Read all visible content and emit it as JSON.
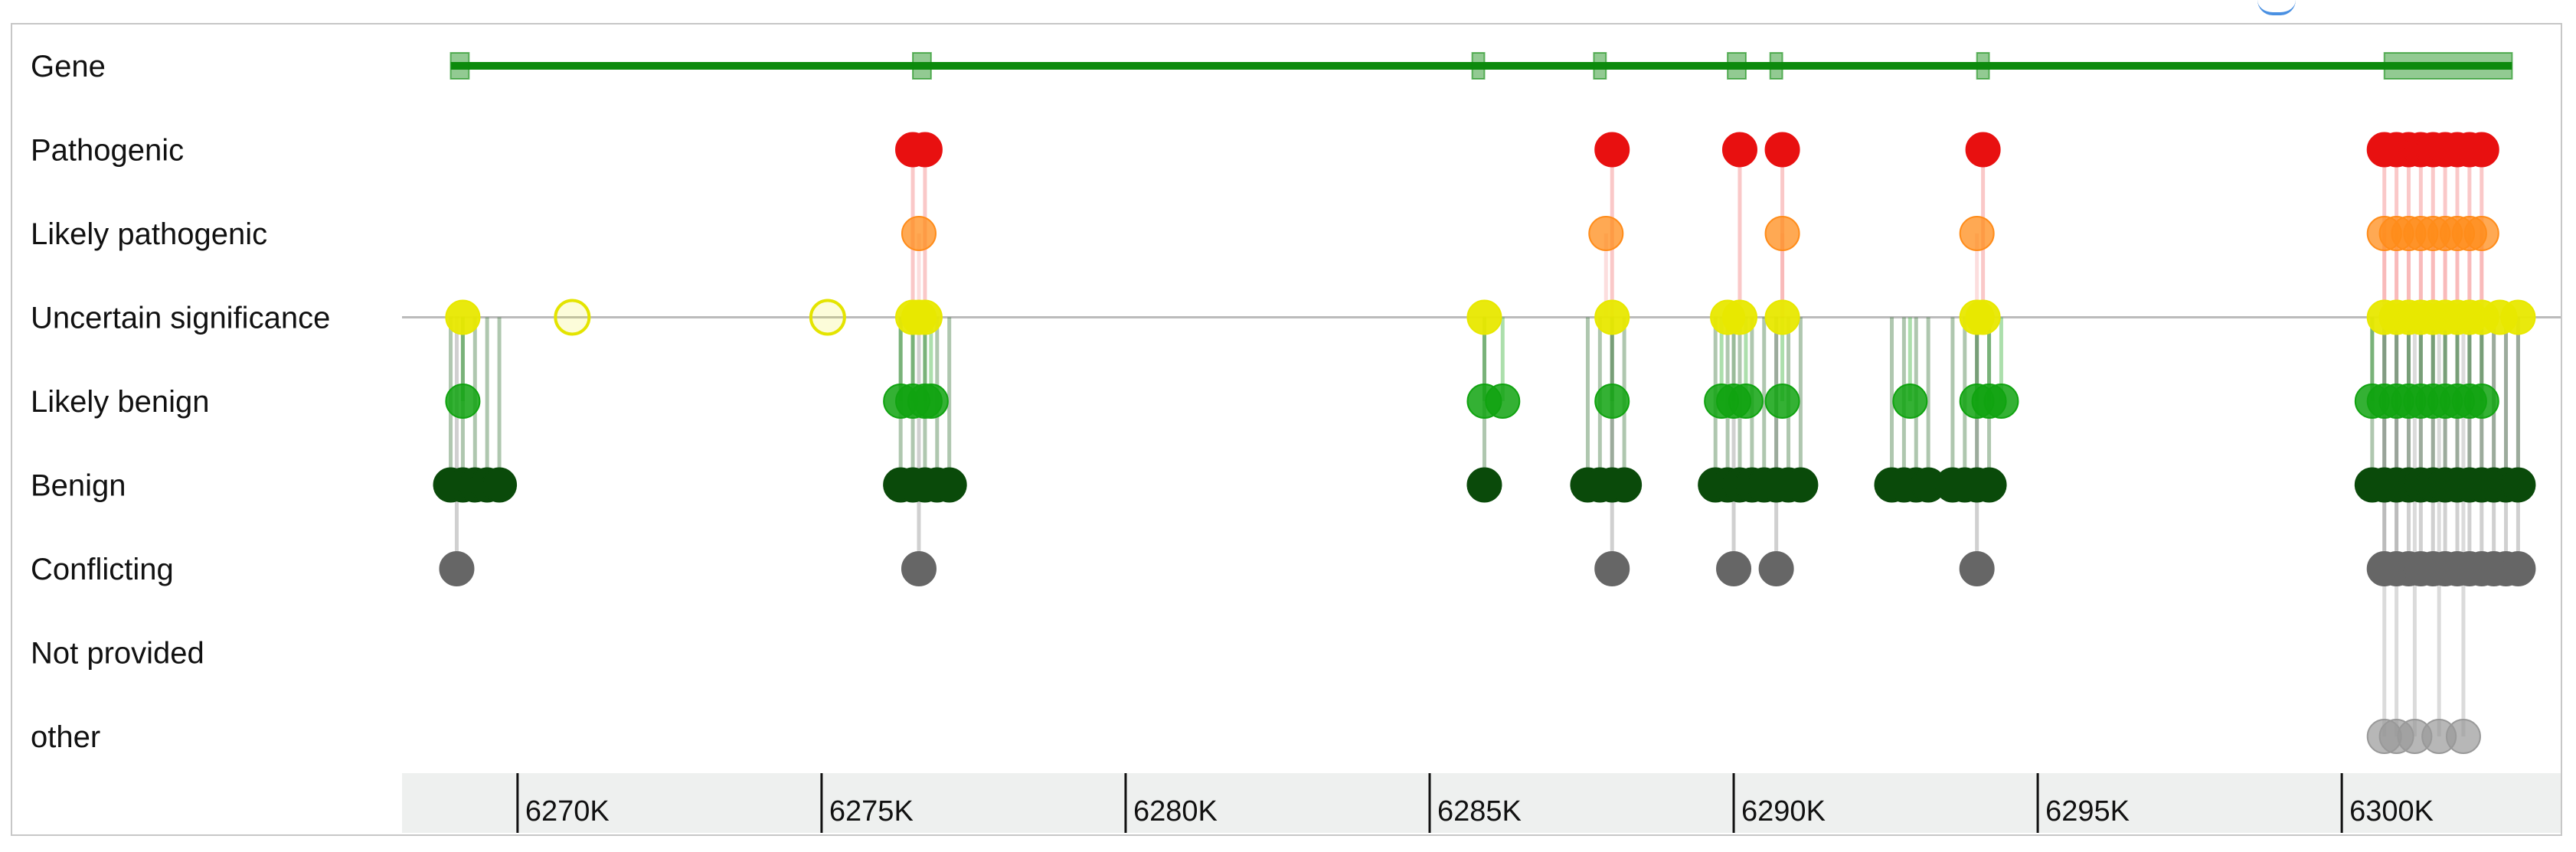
{
  "chart_data": {
    "type": "scatter",
    "title": "",
    "xlabel": "",
    "ylabel": "",
    "rows": [
      "Gene",
      "Pathogenic",
      "Likely pathogenic",
      "Uncertain significance",
      "Likely benign",
      "Benign",
      "Conflicting",
      "Not provided",
      "other"
    ],
    "xlim": [
      6268.1,
      6303.6
    ],
    "x_ticks": [
      6270,
      6275,
      6280,
      6285,
      6290,
      6295,
      6300
    ],
    "x_tick_labels": [
      "6270K",
      "6275K",
      "6280K",
      "6285K",
      "6290K",
      "6295K",
      "6300K"
    ],
    "gene": {
      "span": [
        6268.9,
        6302.8
      ],
      "exons": [
        [
          6268.9,
          6269.2
        ],
        [
          6276.5,
          6276.8
        ],
        [
          6285.7,
          6285.9
        ],
        [
          6287.7,
          6287.9
        ],
        [
          6289.9,
          6290.2
        ],
        [
          6290.6,
          6290.8
        ],
        [
          6294.0,
          6294.2
        ],
        [
          6300.7,
          6302.8
        ]
      ]
    },
    "colors": {
      "gene": "#0d8a0d",
      "Pathogenic": "#e81010",
      "Likely pathogenic": "#ff8c1a",
      "Uncertain significance": "#e8e800",
      "Likely benign": "#10a310",
      "Benign": "#0a4a0a",
      "Conflicting": "#666666",
      "other": "#999999",
      "baseline": "#bbbbbb"
    },
    "variants": {
      "Pathogenic": [
        6276.5,
        6276.7,
        6288.0,
        6290.1,
        6290.8,
        6294.1,
        6300.7,
        6300.9,
        6301.1,
        6301.3,
        6301.5,
        6301.7,
        6301.9,
        6302.1,
        6302.3
      ],
      "Likely pathogenic": [
        6276.6,
        6287.9,
        6290.8,
        6294.0,
        6300.7,
        6300.9,
        6301.1,
        6301.3,
        6301.5,
        6301.7,
        6301.9,
        6302.1,
        6302.3
      ],
      "Uncertain significance": [
        6269.1,
        6270.9,
        6275.1,
        6276.5,
        6276.6,
        6276.7,
        6285.9,
        6288.0,
        6289.9,
        6290.1,
        6290.8,
        6294.0,
        6294.1,
        6300.7,
        6300.9,
        6301.1,
        6301.3,
        6301.5,
        6301.7,
        6301.9,
        6302.1,
        6302.3,
        6302.6,
        6302.9
      ],
      "Likely benign": [
        6269.1,
        6276.3,
        6276.5,
        6276.7,
        6276.8,
        6285.9,
        6286.2,
        6288.0,
        6289.8,
        6290.0,
        6290.2,
        6290.8,
        6292.9,
        6294.0,
        6294.2,
        6294.4,
        6300.5,
        6300.7,
        6300.9,
        6301.1,
        6301.3,
        6301.5,
        6301.7,
        6301.9,
        6302.1,
        6302.3
      ],
      "Benign": [
        6268.9,
        6269.1,
        6269.3,
        6269.5,
        6269.7,
        6276.3,
        6276.5,
        6276.7,
        6276.9,
        6277.1,
        6285.9,
        6287.6,
        6287.8,
        6288.0,
        6288.2,
        6289.7,
        6289.9,
        6290.1,
        6290.3,
        6290.5,
        6290.7,
        6290.9,
        6291.1,
        6292.6,
        6292.8,
        6293.0,
        6293.2,
        6293.6,
        6293.8,
        6294.0,
        6294.2,
        6300.5,
        6300.7,
        6300.9,
        6301.1,
        6301.3,
        6301.5,
        6301.7,
        6301.9,
        6302.1,
        6302.3,
        6302.5,
        6302.7,
        6302.9
      ],
      "Conflicting": [
        6269.0,
        6276.6,
        6288.0,
        6290.0,
        6290.7,
        6294.0,
        6300.7,
        6300.9,
        6301.1,
        6301.3,
        6301.5,
        6301.7,
        6301.9,
        6302.1,
        6302.3,
        6302.5,
        6302.7,
        6302.9
      ],
      "other": [
        6300.7,
        6300.9,
        6301.2,
        6301.6,
        6302.0
      ]
    }
  }
}
